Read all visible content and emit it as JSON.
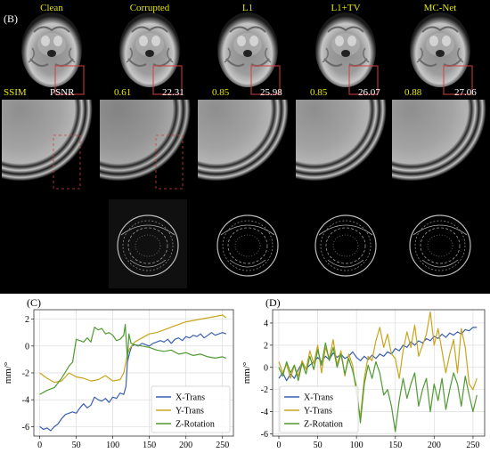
{
  "panel_b": {
    "label": "(B)",
    "titles": [
      "Clean",
      "Corrupted",
      "L1",
      "L1+TV",
      "MC-Net"
    ],
    "metric_header": {
      "ssim": "SSIM",
      "psnr": "PSNR"
    },
    "metrics": [
      {
        "ssim": "0.61",
        "psnr": "22.31"
      },
      {
        "ssim": "0.85",
        "psnr": "25.98"
      },
      {
        "ssim": "0.85",
        "psnr": "26.07"
      },
      {
        "ssim": "0.88",
        "psnr": "27.06"
      }
    ],
    "colors": {
      "title": "#e8e800",
      "ssim": "#e8e800",
      "psnr": "#ffffff",
      "roi_box": "#d04040"
    }
  },
  "chart_data": [
    {
      "type": "line",
      "panel_label": "(C)",
      "ylabel": "mm/°",
      "xlim": [
        -8,
        265
      ],
      "ylim": [
        -6.7,
        2.7
      ],
      "xticks": [
        0,
        50,
        100,
        150,
        200,
        250
      ],
      "yticks": [
        -6,
        -4,
        -2,
        0,
        2
      ],
      "grid": true,
      "legend": "lower-right",
      "series": [
        {
          "name": "X-Trans",
          "color": "#3a5fb0",
          "x": [
            0,
            5,
            10,
            15,
            20,
            25,
            30,
            35,
            40,
            45,
            50,
            55,
            60,
            65,
            70,
            75,
            80,
            85,
            90,
            95,
            100,
            105,
            110,
            115,
            118,
            120,
            123,
            126,
            130,
            135,
            140,
            145,
            150,
            155,
            160,
            165,
            170,
            175,
            180,
            185,
            190,
            195,
            200,
            205,
            210,
            215,
            220,
            225,
            230,
            235,
            240,
            245,
            250,
            255
          ],
          "y": [
            -6.0,
            -6.2,
            -6.1,
            -6.3,
            -6.0,
            -5.8,
            -5.4,
            -5.1,
            -5.0,
            -4.9,
            -5.0,
            -4.6,
            -4.3,
            -4.6,
            -4.4,
            -3.8,
            -4.0,
            -4.1,
            -3.9,
            -4.2,
            -3.8,
            -3.9,
            -3.5,
            -3.6,
            -3.0,
            -1.2,
            -0.5,
            0.0,
            0.1,
            0.0,
            0.2,
            0.1,
            0.0,
            0.2,
            0.3,
            0.4,
            0.3,
            0.5,
            0.2,
            0.5,
            0.6,
            0.4,
            0.7,
            0.6,
            0.8,
            0.7,
            0.9,
            0.6,
            0.8,
            1.0,
            0.8,
            0.9,
            1.0,
            0.9
          ]
        },
        {
          "name": "Y-Trans",
          "color": "#c9a51c",
          "x": [
            0,
            10,
            20,
            30,
            40,
            50,
            60,
            70,
            80,
            90,
            100,
            110,
            115,
            118,
            120,
            123,
            126,
            130,
            140,
            150,
            160,
            170,
            180,
            190,
            200,
            210,
            220,
            230,
            240,
            250,
            255
          ],
          "y": [
            -2.0,
            -2.4,
            -2.7,
            -2.6,
            -2.0,
            -2.3,
            -2.4,
            -2.6,
            -2.5,
            -2.2,
            -2.6,
            -2.5,
            -2.0,
            -1.2,
            -0.6,
            -0.2,
            0.0,
            0.3,
            0.6,
            0.9,
            1.0,
            1.2,
            1.4,
            1.6,
            1.8,
            1.9,
            2.0,
            2.1,
            2.2,
            2.3,
            2.1
          ]
        },
        {
          "name": "Z-Rotation",
          "color": "#4f9a32",
          "x": [
            0,
            10,
            20,
            30,
            40,
            45,
            50,
            55,
            60,
            65,
            70,
            75,
            80,
            85,
            90,
            95,
            100,
            105,
            110,
            115,
            117,
            120,
            122,
            125,
            130,
            140,
            150,
            160,
            170,
            180,
            190,
            200,
            210,
            220,
            230,
            240,
            250,
            255
          ],
          "y": [
            -3.6,
            -3.3,
            -3.1,
            -2.4,
            -1.5,
            -1.2,
            0.5,
            0.4,
            0.3,
            0.6,
            0.3,
            1.4,
            1.2,
            1.3,
            0.9,
            1.0,
            0.8,
            0.4,
            0.5,
            0.8,
            1.6,
            -1.0,
            0.9,
            0.2,
            0.1,
            0.0,
            -0.1,
            -0.3,
            -0.4,
            -0.3,
            -0.6,
            -0.5,
            -0.7,
            -0.6,
            -0.8,
            -0.9,
            -0.8,
            -0.9
          ]
        }
      ]
    },
    {
      "type": "line",
      "panel_label": "(D)",
      "ylabel": "mm/°",
      "xlim": [
        -8,
        265
      ],
      "ylim": [
        -6.2,
        5.2
      ],
      "xticks": [
        0,
        50,
        100,
        150,
        200,
        250
      ],
      "yticks": [
        -6,
        -4,
        -2,
        0,
        2,
        4
      ],
      "grid": true,
      "legend": "lower-left",
      "series": [
        {
          "name": "X-Trans",
          "color": "#3a5fb0",
          "x": [
            0,
            5,
            10,
            15,
            20,
            25,
            30,
            35,
            40,
            45,
            50,
            55,
            60,
            65,
            70,
            75,
            80,
            85,
            90,
            95,
            100,
            105,
            110,
            115,
            120,
            125,
            130,
            135,
            140,
            145,
            150,
            155,
            160,
            165,
            170,
            175,
            180,
            185,
            190,
            195,
            200,
            205,
            210,
            215,
            220,
            225,
            230,
            235,
            240,
            245,
            250,
            255
          ],
          "y": [
            -1.0,
            -0.5,
            -1.2,
            -0.6,
            -1.0,
            -0.2,
            0.4,
            -0.1,
            0.2,
            0.5,
            0.9,
            0.5,
            1.0,
            0.7,
            1.3,
            0.9,
            1.2,
            0.8,
            1.0,
            1.4,
            0.9,
            0.6,
            1.0,
            0.7,
            1.1,
            0.8,
            1.2,
            1.0,
            1.4,
            1.2,
            1.7,
            1.5,
            2.0,
            1.8,
            2.3,
            2.0,
            2.4,
            2.2,
            2.6,
            2.4,
            2.8,
            2.6,
            3.0,
            2.7,
            3.1,
            2.9,
            3.2,
            3.0,
            3.4,
            3.3,
            3.6,
            3.6
          ]
        },
        {
          "name": "Y-Trans",
          "color": "#c9a51c",
          "x": [
            0,
            5,
            10,
            15,
            20,
            25,
            30,
            35,
            40,
            45,
            50,
            55,
            60,
            65,
            70,
            75,
            80,
            85,
            90,
            95,
            100,
            105,
            110,
            115,
            120,
            125,
            130,
            135,
            140,
            145,
            150,
            155,
            160,
            165,
            170,
            175,
            180,
            185,
            190,
            195,
            200,
            205,
            210,
            215,
            220,
            225,
            230,
            235,
            240,
            245,
            250,
            255
          ],
          "y": [
            0.5,
            -0.5,
            0.3,
            -1.0,
            0.2,
            -0.8,
            0.6,
            -0.2,
            1.5,
            0.3,
            2.0,
            -0.5,
            1.8,
            0.8,
            2.5,
            0.2,
            1.5,
            -0.8,
            1.2,
            0.2,
            -2.5,
            -4.5,
            -1.0,
            1.0,
            0.6,
            2.4,
            3.6,
            1.8,
            3.0,
            1.2,
            0.8,
            -1.0,
            1.5,
            3.2,
            1.8,
            3.8,
            1.0,
            2.0,
            3.0,
            5.0,
            2.0,
            3.5,
            1.5,
            -0.5,
            1.2,
            2.5,
            -0.5,
            3.5,
            1.8,
            -1.5,
            -2.0,
            -1.0
          ]
        },
        {
          "name": "Z-Rotation",
          "color": "#4f9a32",
          "x": [
            0,
            5,
            10,
            15,
            20,
            25,
            30,
            35,
            40,
            45,
            50,
            55,
            60,
            65,
            70,
            75,
            80,
            85,
            90,
            95,
            100,
            105,
            110,
            115,
            120,
            125,
            130,
            135,
            140,
            145,
            150,
            155,
            160,
            165,
            170,
            175,
            180,
            185,
            190,
            195,
            200,
            205,
            210,
            215,
            220,
            225,
            230,
            235,
            240,
            245,
            250,
            255
          ],
          "y": [
            0.0,
            -0.8,
            0.5,
            -0.5,
            0.2,
            -1.2,
            0.4,
            -0.6,
            1.0,
            -0.2,
            1.6,
            0.2,
            2.2,
            0.6,
            1.8,
            0.0,
            1.2,
            -0.6,
            0.8,
            -0.3,
            -1.8,
            -5.0,
            -1.5,
            0.2,
            -1.0,
            0.5,
            -0.5,
            -2.5,
            -2.0,
            -3.5,
            -5.8,
            -3.0,
            -1.0,
            -2.8,
            -1.5,
            -0.5,
            -3.5,
            -2.0,
            -1.0,
            -4.0,
            -1.5,
            -3.0,
            -1.0,
            -3.8,
            -2.0,
            -0.5,
            -1.5,
            -3.5,
            -0.8,
            -2.5,
            -4.0,
            -2.5
          ]
        }
      ]
    }
  ]
}
